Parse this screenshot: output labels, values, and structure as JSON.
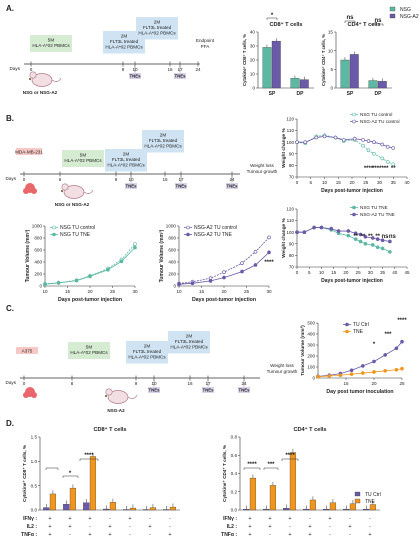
{
  "panels": {
    "A": {
      "label": "A.",
      "timeline": {
        "days_word": "Days",
        "box1": [
          "5M",
          "HLA-A*02 PBMCs"
        ],
        "box2": [
          "2M",
          "FLT3L treated",
          "HLA-A*02 PBMCs"
        ],
        "box3": [
          "2M",
          "FLT3L treated",
          "HLA-A*02 PBMCs"
        ],
        "ticks": [
          "0",
          "9",
          "10",
          "16",
          "17",
          "24"
        ],
        "tne": "TNEs",
        "endpoint": [
          "Endpoint",
          "PFA"
        ],
        "mouse_label": "NSG or NSG-A2"
      }
    },
    "B": {
      "label": "B.",
      "timeline": {
        "days_word": "Days",
        "cell_box": "MDA-MB-231",
        "box1": [
          "5M",
          "HLA-A*02 PBMCs"
        ],
        "box2": [
          "2M",
          "FLT3L treated",
          "HLA-A*02 PBMCs"
        ],
        "box3": [
          "2M",
          "FLT3L treated",
          "HLA-A*02 PBMCs"
        ],
        "ticks": [
          "0",
          "6",
          "9",
          "10",
          "16",
          "17",
          "24"
        ],
        "tne": "TNEs",
        "outcome": [
          "Weight loss",
          "Tumour growth"
        ],
        "mouse_label": "NSG or NSG-A2"
      }
    },
    "C": {
      "label": "C.",
      "timeline": {
        "days_word": "Days",
        "cell_box": "A375",
        "box1": [
          "5M",
          "HLA-A*02 PBMCs"
        ],
        "box2": [
          "2M",
          "FLT3L treated",
          "HLA-A*02 PBMCs"
        ],
        "box3": [
          "2M",
          "FLT3L treated",
          "HLA-A*02 PBMCs"
        ],
        "ticks": [
          "0",
          "8",
          "9",
          "10",
          "16",
          "17",
          "24"
        ],
        "tne": "TNEs",
        "outcome": [
          "Weight loss",
          "Tumour growth"
        ],
        "mouse_label": "NSG-A2"
      }
    },
    "D": {
      "label": "D.",
      "row_labels": [
        "IFNγ",
        "IL2",
        "TNFα"
      ],
      "combos": [
        [
          "+",
          "+",
          "+"
        ],
        [
          "+",
          "+",
          "-"
        ],
        [
          "+",
          "-",
          "+"
        ],
        [
          "-",
          "+",
          "+"
        ],
        [
          "+",
          "-",
          "-"
        ],
        [
          "-",
          "+",
          "-"
        ],
        [
          "-",
          "-",
          "+"
        ]
      ]
    }
  },
  "colors": {
    "nsg": "#5bb8a3",
    "nsga2": "#6a5aa8",
    "ctrl": "#6a5aa8",
    "tne": "#f0961e",
    "box_green": "#d6ecd2",
    "box_blue": "#cfe3f3",
    "box_red": "#f7c9c6",
    "tne_box": "#d8d3ea"
  },
  "chart_data": [
    {
      "id": "A-cd8",
      "type": "bar",
      "title": "CD8⁺ T cells",
      "ylabel": "Cytokine⁺ CD8⁺ T cells, %",
      "categories": [
        "SP",
        "DP"
      ],
      "ylim": [
        0,
        40
      ],
      "yticks": [
        0,
        10,
        20,
        30,
        40
      ],
      "series": [
        {
          "name": "NSG",
          "values": [
            29,
            7
          ]
        },
        {
          "name": "NSG-A2",
          "values": [
            33.5,
            6
          ]
        }
      ],
      "annotations": [
        "*"
      ]
    },
    {
      "id": "A-cd4",
      "type": "bar",
      "title": "CD4⁺ T cells",
      "ylabel": "Cytokine⁺ CD4⁺ T cells, %",
      "categories": [
        "SP",
        "DP"
      ],
      "ylim": [
        0,
        15
      ],
      "yticks": [
        0,
        5,
        10,
        15
      ],
      "series": [
        {
          "name": "NSG",
          "values": [
            7.5,
            2
          ]
        },
        {
          "name": "NSG-A2",
          "values": [
            9,
            1.8
          ]
        }
      ],
      "annotations": [
        "ns",
        "ns"
      ]
    },
    {
      "id": "B-weight-top",
      "type": "line",
      "xlabel": "Days post-tumor injection",
      "ylabel": "Weight change %",
      "xlim": [
        0,
        40
      ],
      "xticks": [
        0,
        5,
        10,
        15,
        20,
        25,
        30,
        35,
        40
      ],
      "ylim": [
        70,
        120
      ],
      "yticks": [
        70,
        80,
        90,
        100,
        110,
        120
      ],
      "series": [
        {
          "name": "NSG TU control",
          "x": [
            0,
            3,
            7,
            10,
            14,
            17,
            21,
            24,
            26,
            28,
            31,
            33,
            35
          ],
          "y": [
            100,
            99,
            105,
            106,
            104,
            101,
            102,
            97,
            93,
            90,
            86,
            83,
            81
          ]
        },
        {
          "name": "NSG-A2 TU control",
          "x": [
            0,
            3,
            7,
            10,
            14,
            17,
            21,
            24,
            26,
            28,
            31,
            33,
            35
          ],
          "y": [
            100,
            100,
            104,
            105,
            104,
            102,
            103,
            102,
            101,
            100,
            98,
            96,
            95
          ]
        }
      ],
      "annotations": [
        "****",
        "****",
        "***",
        "**"
      ]
    },
    {
      "id": "B-weight-bottom",
      "type": "line",
      "xlabel": "Days post-tumor injection",
      "ylabel": "Weight change %",
      "xlim": [
        0,
        45
      ],
      "xticks": [
        0,
        5,
        10,
        15,
        20,
        25,
        30,
        35,
        40,
        45
      ],
      "ylim": [
        70,
        120
      ],
      "yticks": [
        70,
        80,
        90,
        100,
        110,
        120
      ],
      "series": [
        {
          "name": "NSG TU TNE",
          "x": [
            0,
            3,
            7,
            10,
            14,
            17,
            21,
            24,
            26,
            28,
            31,
            33,
            35,
            38
          ],
          "y": [
            100,
            100,
            104,
            104,
            102,
            99,
            97,
            94,
            92,
            90,
            89,
            87,
            86,
            83
          ]
        },
        {
          "name": "NSG-A2 TU TNE",
          "x": [
            0,
            3,
            7,
            10,
            14,
            17,
            21,
            24,
            26,
            28,
            31,
            33,
            35,
            38
          ],
          "y": [
            100,
            100,
            104,
            104,
            103,
            101,
            101,
            99,
            98,
            96,
            95,
            94,
            93,
            92
          ]
        }
      ],
      "annotations": [
        "**",
        "**",
        "**",
        "**",
        "ns",
        "ns"
      ]
    },
    {
      "id": "B-tumour-nsg",
      "type": "line",
      "xlabel": "Days post-tumor injection",
      "ylabel": "Tumour Volume (mm³)",
      "xlim": [
        10,
        30
      ],
      "xticks": [
        10,
        15,
        20,
        25,
        30
      ],
      "ylim": [
        0,
        1000
      ],
      "yticks": [
        0,
        200,
        400,
        600,
        800,
        1000
      ],
      "series": [
        {
          "name": "NSG TU control",
          "x": [
            10,
            13,
            17,
            20,
            24,
            27,
            30
          ],
          "y": [
            35,
            55,
            95,
            170,
            290,
            440,
            700
          ]
        },
        {
          "name": "NSG TU TNE",
          "x": [
            10,
            13,
            17,
            20,
            24,
            27,
            30
          ],
          "y": [
            30,
            50,
            90,
            160,
            270,
            410,
            640
          ]
        }
      ]
    },
    {
      "id": "B-tumour-nsga2",
      "type": "line",
      "xlabel": "Days post-tumor injection",
      "ylabel": "Tumour Volume (mm³)",
      "xlim": [
        10,
        30
      ],
      "xticks": [
        10,
        15,
        20,
        25,
        30
      ],
      "ylim": [
        0,
        1000
      ],
      "yticks": [
        0,
        200,
        400,
        600,
        800,
        1000
      ],
      "series": [
        {
          "name": "NSG-A2 TU control",
          "x": [
            10,
            13,
            17,
            20,
            24,
            27,
            30
          ],
          "y": [
            40,
            70,
            130,
            230,
            380,
            570,
            810
          ]
        },
        {
          "name": "NSG-A2 TU TNE",
          "x": [
            10,
            13,
            17,
            20,
            24,
            27,
            30
          ],
          "y": [
            30,
            45,
            85,
            140,
            240,
            350,
            560
          ]
        }
      ],
      "annotations": [
        "****"
      ]
    },
    {
      "id": "C-tumour",
      "type": "line",
      "xlabel": "Day post tumor inoculation",
      "ylabel": "Tumour Volume (mm³)",
      "xlim": [
        10,
        25
      ],
      "xticks": [
        15,
        20,
        25
      ],
      "ylim": [
        0,
        500
      ],
      "yticks": [
        0,
        100,
        200,
        300,
        400,
        500
      ],
      "series": [
        {
          "name": "TU Ctrl",
          "x": [
            10,
            12,
            14,
            16,
            18,
            20,
            22,
            24,
            25
          ],
          "y": [
            15,
            25,
            40,
            70,
            110,
            150,
            210,
            270,
            330
          ]
        },
        {
          "name": "TNE",
          "x": [
            10,
            12,
            14,
            16,
            18,
            20,
            22,
            24,
            25
          ],
          "y": [
            12,
            18,
            25,
            35,
            45,
            55,
            65,
            75,
            85
          ]
        }
      ],
      "annotations": [
        "*",
        "***",
        "****"
      ]
    },
    {
      "id": "D-cd8",
      "type": "bar",
      "title": "CD8⁺ T cells",
      "ylabel": "Cytokine⁺ CD8⁺ T cells, %",
      "categories": [
        "1",
        "2",
        "3",
        "4",
        "5",
        "6",
        "7"
      ],
      "ylim": [
        0,
        1.5
      ],
      "yticks": [
        0.0,
        0.5,
        1.0,
        1.5
      ],
      "series": [
        {
          "name": "TU Ctrl",
          "values": [
            0.05,
            0.12,
            0.15,
            0.02,
            0.01,
            0.01,
            0.01
          ]
        },
        {
          "name": "TNE",
          "values": [
            0.33,
            0.45,
            1.1,
            0.16,
            0.04,
            0.05,
            0.06
          ]
        }
      ],
      "annotations": [
        "*",
        "****"
      ]
    },
    {
      "id": "D-cd4",
      "type": "bar",
      "title": "CD4⁺ T cells",
      "ylabel": "Cytokine⁺ CD4⁺ T cells, %",
      "categories": [
        "1",
        "2",
        "3",
        "4",
        "5",
        "6",
        "7"
      ],
      "ylim": [
        0,
        0.8
      ],
      "yticks": [
        0.0,
        0.2,
        0.4,
        0.6,
        0.8
      ],
      "series": [
        {
          "name": "TU Ctrl",
          "values": [
            0.01,
            0.01,
            0.02,
            0.01,
            0.01,
            0.01,
            0.01
          ]
        },
        {
          "name": "TNE",
          "values": [
            0.35,
            0.27,
            0.63,
            0.11,
            0.08,
            0.07,
            0.06
          ]
        }
      ],
      "annotations": [
        "****",
        "***",
        "****"
      ]
    }
  ],
  "legends": {
    "A": [
      "NSG",
      "NSG-A2"
    ],
    "C": [
      "TU Ctrl",
      "TNE"
    ],
    "D": [
      "TU Ctrl",
      "TNE"
    ]
  }
}
